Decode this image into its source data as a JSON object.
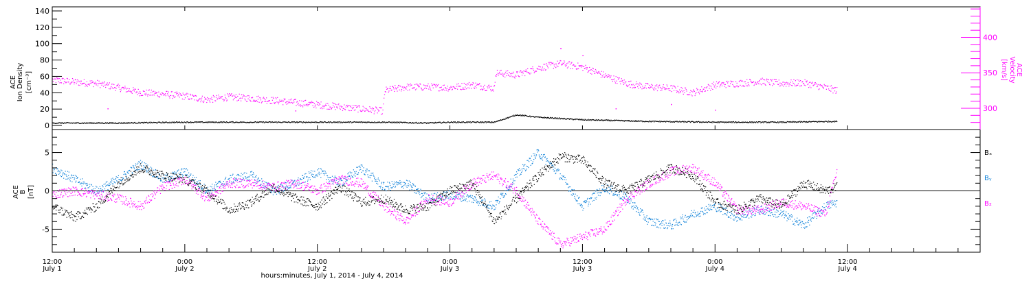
{
  "colors": {
    "black": "#000000",
    "magenta": "#ff00ff",
    "blue": "#0a7fd8"
  },
  "chart_data": [
    {
      "type": "scatter",
      "panel": "top",
      "left_axis_label": [
        "ACE",
        "Ion Density",
        "[cm⁻³]"
      ],
      "right_axis_label": [
        "ACE",
        "Velocity",
        "[km/s]"
      ],
      "ylim_left": [
        -5,
        145
      ],
      "ylim_right": [
        270,
        443
      ],
      "yticks_left": [
        "0",
        "20",
        "40",
        "60",
        "80",
        "100",
        "120",
        "140"
      ],
      "yticks_right": [
        "300",
        "350",
        "400"
      ],
      "series": [
        {
          "name": "Ion Density",
          "axis": "left",
          "color": "#000000",
          "x": [
            0,
            6,
            12,
            18,
            24,
            30,
            34,
            36,
            40,
            42,
            44,
            48,
            54,
            60,
            66,
            71
          ],
          "y": [
            3,
            3,
            4,
            4,
            4,
            4,
            3,
            4,
            4,
            13,
            10,
            7,
            5,
            4,
            4,
            5
          ]
        },
        {
          "name": "Velocity",
          "axis": "right",
          "color": "#ff00ff",
          "x": [
            0,
            2,
            4,
            6,
            8,
            10,
            12,
            14,
            16,
            18,
            20,
            22,
            24,
            26,
            28,
            29.9,
            30.1,
            32,
            34,
            36,
            38,
            40,
            40.1,
            42,
            44,
            46,
            48,
            50,
            52,
            54,
            56,
            58,
            60,
            62,
            64,
            66,
            68,
            70,
            71
          ],
          "y": [
            340,
            337,
            335,
            329,
            322,
            320,
            317,
            312,
            316,
            314,
            311,
            308,
            305,
            302,
            299,
            296,
            325,
            330,
            330,
            329,
            333,
            328,
            350,
            347,
            357,
            363,
            358,
            346,
            335,
            330,
            328,
            322,
            333,
            335,
            338,
            335,
            336,
            329,
            325
          ],
          "outliers": [
            [
              5,
              300
            ],
            [
              22,
              297
            ],
            [
              46,
              385
            ],
            [
              48,
              375
            ],
            [
              51,
              300
            ],
            [
              56,
              306
            ],
            [
              60,
              298
            ]
          ]
        }
      ]
    },
    {
      "type": "scatter",
      "panel": "bottom",
      "left_axis_label": [
        "ACE",
        "B",
        "[nT]"
      ],
      "ylim": [
        -8,
        8
      ],
      "yticks": [
        "-5",
        "0",
        "5"
      ],
      "legend": [
        "Bₓ",
        "Bᵧ",
        "B₂"
      ],
      "legend_placement": "right",
      "series": [
        {
          "name": "Bx",
          "color": "#000000",
          "x": [
            0,
            2,
            4,
            6,
            8,
            10,
            12,
            14,
            16,
            18,
            20,
            22,
            24,
            26,
            28,
            30,
            32,
            34,
            36,
            38,
            40,
            42,
            44,
            46,
            48,
            50,
            52,
            54,
            56,
            58,
            60,
            62,
            64,
            66,
            68,
            70,
            71
          ],
          "y": [
            -2,
            -3.5,
            -2,
            1,
            3,
            2,
            1.5,
            0,
            -2.5,
            -1.5,
            0.5,
            -1,
            -2,
            0.5,
            -1.5,
            -1,
            -2.5,
            -2,
            0,
            1,
            -4,
            -1,
            2,
            4.5,
            4,
            1,
            0,
            1.5,
            3,
            2,
            -1.5,
            -2.5,
            -1,
            -2,
            1,
            0,
            0.5
          ]
        },
        {
          "name": "By",
          "color": "#0a7fd8",
          "x": [
            0,
            2,
            4,
            6,
            8,
            10,
            12,
            14,
            16,
            18,
            20,
            22,
            24,
            26,
            28,
            30,
            32,
            34,
            36,
            38,
            40,
            42,
            44,
            46,
            48,
            50,
            52,
            54,
            56,
            58,
            60,
            62,
            64,
            66,
            68,
            70,
            71
          ],
          "y": [
            3,
            1.5,
            0,
            1.5,
            3.5,
            1.5,
            2.5,
            0,
            1.5,
            2,
            0,
            1,
            2.5,
            1,
            3,
            0.5,
            1,
            -1,
            -0.5,
            -1,
            -2,
            2,
            5,
            2,
            -2,
            0.5,
            -1,
            -4,
            -4.5,
            -3,
            -2,
            -3.5,
            -2.5,
            -3,
            -4.5,
            -2,
            -1.5
          ]
        },
        {
          "name": "Bz",
          "color": "#ff00ff",
          "x": [
            0,
            2,
            4,
            6,
            8,
            10,
            12,
            14,
            16,
            18,
            20,
            22,
            24,
            26,
            28,
            30,
            32,
            34,
            36,
            38,
            40,
            42,
            44,
            46,
            48,
            50,
            52,
            54,
            56,
            58,
            60,
            62,
            64,
            66,
            68,
            70,
            71
          ],
          "y": [
            -0.5,
            0,
            -0.5,
            -1,
            -2,
            0.5,
            1.5,
            -1,
            1,
            1,
            0.5,
            1,
            0,
            1.5,
            1,
            -2,
            -4,
            -1,
            -1.5,
            1,
            2,
            0,
            -4,
            -7,
            -6,
            -5,
            -1,
            1,
            2.5,
            3,
            1,
            -2.5,
            -2.5,
            -1.5,
            -2,
            -3,
            2.5
          ]
        }
      ]
    }
  ],
  "x_axis": {
    "range_hours": [
      0,
      84
    ],
    "ticks": [
      {
        "h": 0,
        "time": "12:00",
        "date": "July 1"
      },
      {
        "h": 12,
        "time": "0:00",
        "date": "July 2"
      },
      {
        "h": 24,
        "time": "12:00",
        "date": "July 2"
      },
      {
        "h": 36,
        "time": "0:00",
        "date": "July 3"
      },
      {
        "h": 48,
        "time": "12:00",
        "date": "July 3"
      },
      {
        "h": 60,
        "time": "0:00",
        "date": "July 4"
      },
      {
        "h": 72,
        "time": "12:00",
        "date": "July 4"
      }
    ],
    "title": "hours:minutes, July  1, 2014 - July  4, 2014"
  }
}
